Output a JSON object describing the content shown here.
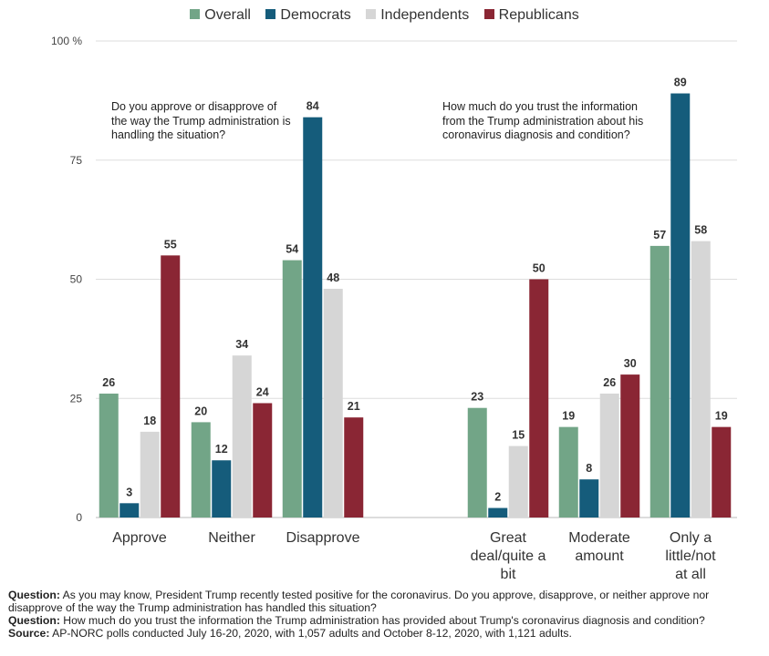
{
  "chart_data": {
    "type": "bar",
    "ylim": [
      0,
      100
    ],
    "yticks": [
      "0",
      "25",
      "50",
      "75",
      "100 %"
    ],
    "ytick_values": [
      0,
      25,
      50,
      75,
      100
    ],
    "legend_position": "top-center",
    "grid": true,
    "series": [
      {
        "name": "Overall",
        "color": "#72a587"
      },
      {
        "name": "Democrats",
        "color": "#155c7b"
      },
      {
        "name": "Independents",
        "color": "#d6d6d6"
      },
      {
        "name": "Republicans",
        "color": "#8a2634"
      }
    ],
    "groups": [
      {
        "annotation": "Do you approve or disapprove of the way the Trump administration is handling the situation?",
        "categories": [
          {
            "label": "Approve",
            "values": [
              26,
              3,
              18,
              55
            ]
          },
          {
            "label": "Neither",
            "values": [
              20,
              12,
              34,
              24
            ]
          },
          {
            "label": "Disapprove",
            "values": [
              54,
              84,
              48,
              21
            ]
          }
        ]
      },
      {
        "annotation": "How much do you trust the information from the Trump administration about his coronavirus diagnosis and condition?",
        "categories": [
          {
            "label": "Great deal/quite a bit",
            "values": [
              23,
              2,
              15,
              50
            ]
          },
          {
            "label": "Moderate amount",
            "values": [
              19,
              8,
              26,
              30
            ]
          },
          {
            "label": "Only a little/not at all",
            "values": [
              57,
              89,
              58,
              19
            ]
          }
        ]
      }
    ]
  },
  "footer": {
    "q1_label": "Question:",
    "q1_text": " As you may know, President Trump recently tested positive for the coronavirus. Do you approve, disapprove, or neither approve nor disapprove of the way the Trump administration has handled this situation?",
    "q2_label": "Question:",
    "q2_text": " How much do you trust the information the Trump administration has provided about Trump's coronavirus diagnosis and condition?",
    "source_label": "Source:",
    "source_text": " AP-NORC polls conducted July 16-20, 2020, with 1,057 adults and October 8-12, 2020, with 1,121 adults."
  }
}
